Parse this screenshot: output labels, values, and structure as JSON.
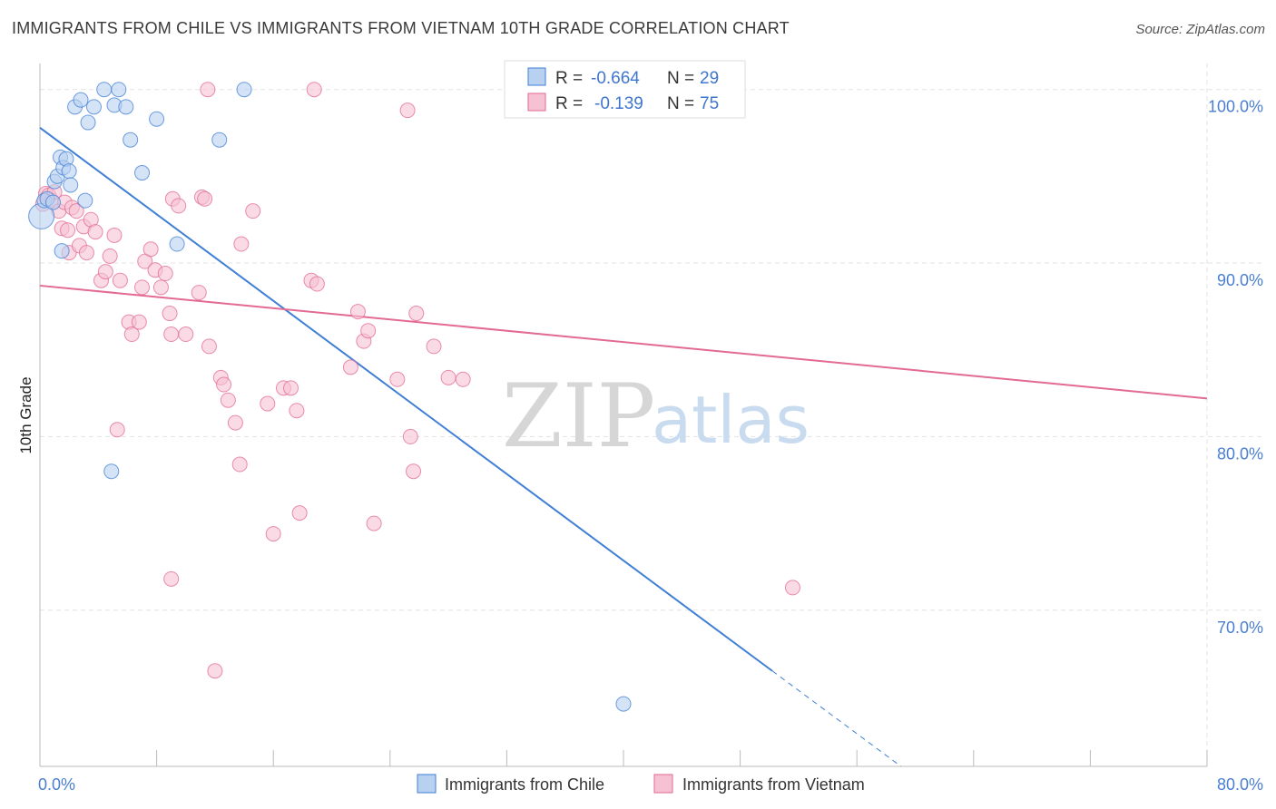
{
  "title": "IMMIGRANTS FROM CHILE VS IMMIGRANTS FROM VIETNAM 10TH GRADE CORRELATION CHART",
  "source": "Source: ZipAtlas.com",
  "watermark": {
    "zip": "ZIP",
    "atlas": "atlas"
  },
  "colors": {
    "chile": "#3f7fd6",
    "chile_fill": "#b9d1f0",
    "vietnam": "#e26a93",
    "vietnam_fill": "#f6c2d3",
    "tick": "#4a7ed1",
    "grid": "#e3e3e3"
  },
  "stats": [
    {
      "r_label": "R =",
      "r_value": "-0.664",
      "n_label": "N =",
      "n_value": "29"
    },
    {
      "r_label": "R =",
      "r_value": "-0.139",
      "n_label": "N =",
      "n_value": "75"
    }
  ],
  "legend": [
    "Immigrants from Chile",
    "Immigrants from Vietnam"
  ],
  "chart_data": {
    "type": "scatter",
    "title": "IMMIGRANTS FROM CHILE VS IMMIGRANTS FROM VIETNAM 10TH GRADE CORRELATION CHART",
    "xlabel": "",
    "ylabel": "10th Grade",
    "xlim": [
      0,
      80
    ],
    "ylim": [
      61,
      101.5
    ],
    "x_tick_labels": [
      "0.0%",
      "80.0%"
    ],
    "y_ticks": [
      70,
      80,
      90,
      100
    ],
    "y_tick_labels": [
      "70.0%",
      "80.0%",
      "90.0%",
      "100.0%"
    ],
    "grid": true,
    "legend_position": "bottom",
    "series": [
      {
        "name": "Immigrants from Chile",
        "points": [
          [
            0.1,
            92.7
          ],
          [
            0.3,
            93.6
          ],
          [
            0.5,
            93.7
          ],
          [
            1.0,
            94.7
          ],
          [
            1.2,
            95.0
          ],
          [
            1.4,
            96.1
          ],
          [
            1.6,
            95.5
          ],
          [
            1.8,
            96.0
          ],
          [
            2.0,
            95.3
          ],
          [
            2.1,
            94.5
          ],
          [
            2.4,
            99.0
          ],
          [
            2.8,
            99.4
          ],
          [
            3.1,
            93.6
          ],
          [
            3.3,
            98.1
          ],
          [
            3.7,
            99.0
          ],
          [
            4.4,
            100.0
          ],
          [
            5.1,
            99.1
          ],
          [
            5.4,
            100.0
          ],
          [
            5.9,
            99.0
          ],
          [
            6.2,
            97.1
          ],
          [
            7.0,
            95.2
          ],
          [
            8.0,
            98.3
          ],
          [
            9.4,
            91.1
          ],
          [
            12.3,
            97.1
          ],
          [
            14.0,
            100.0
          ],
          [
            1.5,
            90.7
          ],
          [
            4.9,
            78.0
          ],
          [
            40.0,
            64.6
          ],
          [
            0.9,
            93.5
          ]
        ],
        "trend": {
          "x0": 0,
          "y0": 97.8,
          "x1": 50.2,
          "y1": 66.5,
          "dashed_to_x": 60,
          "dashed_to_y": 60.3
        }
      },
      {
        "name": "Immigrants from Vietnam",
        "points": [
          [
            0.2,
            93.4
          ],
          [
            0.4,
            94.0
          ],
          [
            0.6,
            93.9
          ],
          [
            0.8,
            93.6
          ],
          [
            1.0,
            94.1
          ],
          [
            1.3,
            93.0
          ],
          [
            1.5,
            92.0
          ],
          [
            1.7,
            93.5
          ],
          [
            1.9,
            91.9
          ],
          [
            2.0,
            90.6
          ],
          [
            2.2,
            93.2
          ],
          [
            2.5,
            93.0
          ],
          [
            2.7,
            91.0
          ],
          [
            3.0,
            92.1
          ],
          [
            3.2,
            90.6
          ],
          [
            3.5,
            92.5
          ],
          [
            3.8,
            91.8
          ],
          [
            4.2,
            89.0
          ],
          [
            4.5,
            89.5
          ],
          [
            4.8,
            90.4
          ],
          [
            5.1,
            91.6
          ],
          [
            5.5,
            89.0
          ],
          [
            6.1,
            86.6
          ],
          [
            6.3,
            85.9
          ],
          [
            6.8,
            86.6
          ],
          [
            7.0,
            88.6
          ],
          [
            7.2,
            90.1
          ],
          [
            7.6,
            90.8
          ],
          [
            7.9,
            89.6
          ],
          [
            8.3,
            88.6
          ],
          [
            8.6,
            89.4
          ],
          [
            8.9,
            87.1
          ],
          [
            9.0,
            85.9
          ],
          [
            9.1,
            93.7
          ],
          [
            9.5,
            93.3
          ],
          [
            10.0,
            85.9
          ],
          [
            10.9,
            88.3
          ],
          [
            11.1,
            93.8
          ],
          [
            11.3,
            93.7
          ],
          [
            11.6,
            85.2
          ],
          [
            12.4,
            83.4
          ],
          [
            12.6,
            83.0
          ],
          [
            12.9,
            82.1
          ],
          [
            13.4,
            80.8
          ],
          [
            13.7,
            78.4
          ],
          [
            13.8,
            91.1
          ],
          [
            14.6,
            93.0
          ],
          [
            15.6,
            81.9
          ],
          [
            16.0,
            74.4
          ],
          [
            16.7,
            82.8
          ],
          [
            17.2,
            82.8
          ],
          [
            17.6,
            81.5
          ],
          [
            17.8,
            75.6
          ],
          [
            18.6,
            89.0
          ],
          [
            19.0,
            88.8
          ],
          [
            21.3,
            84.0
          ],
          [
            21.8,
            87.2
          ],
          [
            22.2,
            85.5
          ],
          [
            22.5,
            86.1
          ],
          [
            22.9,
            75.0
          ],
          [
            24.5,
            83.3
          ],
          [
            25.2,
            98.8
          ],
          [
            25.4,
            80.0
          ],
          [
            25.6,
            78.0
          ],
          [
            25.8,
            87.1
          ],
          [
            27.0,
            85.2
          ],
          [
            28.0,
            83.4
          ],
          [
            29.0,
            83.3
          ],
          [
            34.0,
            100.0
          ],
          [
            51.6,
            71.3
          ],
          [
            5.3,
            80.4
          ],
          [
            11.5,
            100.0
          ],
          [
            12.0,
            66.5
          ],
          [
            9.0,
            71.8
          ],
          [
            18.8,
            100.0
          ]
        ],
        "trend": {
          "x0": 0,
          "y0": 88.7,
          "x1": 80,
          "y1": 82.2
        }
      }
    ]
  }
}
